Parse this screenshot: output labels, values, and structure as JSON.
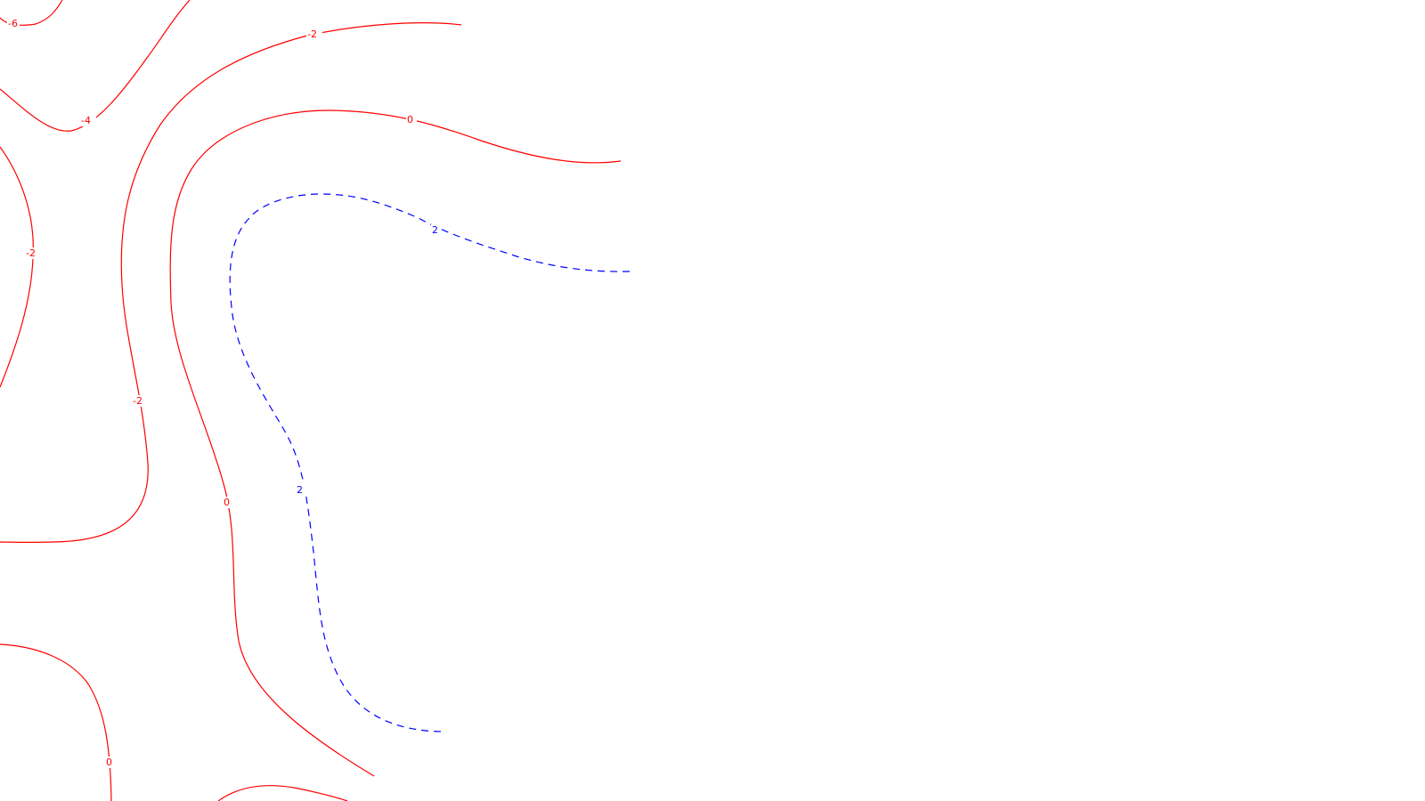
{
  "colors": {
    "negative_zero": "#ff0000",
    "positive": "#0000ff",
    "background": "#ffffff"
  },
  "line_styles": {
    "negative_zero": "solid",
    "positive": "dashed"
  },
  "contours": [
    {
      "id": "c-neg6",
      "value": "-6",
      "style": "solid"
    },
    {
      "id": "c-neg4",
      "value": "-4",
      "style": "solid"
    },
    {
      "id": "c-neg2-top",
      "value": "-2",
      "style": "solid"
    },
    {
      "id": "c-neg2-left",
      "value": "-2",
      "style": "solid"
    },
    {
      "id": "c-neg2-inner",
      "value": "-2",
      "style": "solid"
    },
    {
      "id": "c-zero-main",
      "value": "0",
      "style": "solid"
    },
    {
      "id": "c-zero-bottom-left",
      "value": "0",
      "style": "solid"
    },
    {
      "id": "c-zero-bottom",
      "value": "",
      "style": "solid"
    },
    {
      "id": "c-pos2",
      "value": "2",
      "style": "dashed"
    }
  ]
}
